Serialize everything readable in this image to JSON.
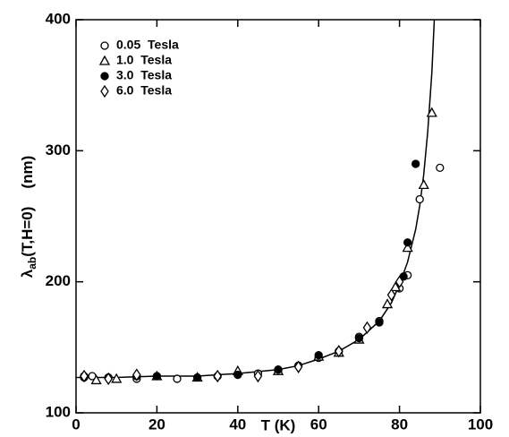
{
  "chart_data": {
    "type": "scatter",
    "xlabel": "T  (K)",
    "ylabel": [
      "λ",
      "ab",
      "(T,H=0)",
      "(nm)"
    ],
    "xlim": [
      0,
      100
    ],
    "xticks": [
      0,
      20,
      40,
      60,
      80,
      100
    ],
    "ylim": [
      100,
      400
    ],
    "yticks": [
      100,
      200,
      300,
      400
    ],
    "legend": "upper left",
    "series": [
      {
        "name": "0.05  Tesla",
        "marker": "circle",
        "filled": false,
        "color": "#000000",
        "x": [
          2,
          4,
          15,
          25,
          35,
          45,
          50,
          55,
          60,
          65,
          70,
          75,
          80,
          82,
          85,
          90
        ],
        "values": [
          127,
          128,
          126,
          126,
          128,
          130,
          132,
          136,
          142,
          147,
          158,
          170,
          195,
          205,
          263,
          287
        ]
      },
      {
        "name": "1.0  Tesla",
        "marker": "triangle",
        "filled": false,
        "color": "#000000",
        "x": [
          5,
          10,
          20,
          30,
          40,
          50,
          60,
          65,
          70,
          77,
          79,
          82,
          86,
          88
        ],
        "values": [
          125,
          126,
          128,
          127,
          132,
          132,
          143,
          146,
          156,
          183,
          196,
          226,
          274,
          329
        ]
      },
      {
        "name": "3.0  Tesla",
        "marker": "circle",
        "filled": true,
        "color": "#000000",
        "x": [
          2,
          8,
          15,
          20,
          30,
          40,
          50,
          60,
          70,
          75,
          81,
          82,
          84
        ],
        "values": [
          128,
          127,
          128,
          128,
          127,
          129,
          133,
          144,
          157,
          169,
          204,
          230,
          290
        ]
      },
      {
        "name": "6.0  Tesla",
        "marker": "diamond",
        "filled": false,
        "color": "#000000",
        "x": [
          2,
          8,
          15,
          35,
          45,
          55,
          65,
          72,
          78,
          80
        ],
        "values": [
          128,
          126,
          129,
          128,
          128,
          135,
          147,
          165,
          190,
          200
        ]
      }
    ],
    "curve": {
      "color": "#000000",
      "x": [
        0,
        10,
        20,
        30,
        40,
        50,
        55,
        60,
        65,
        70,
        75,
        78,
        80,
        82,
        84,
        85,
        86,
        87,
        88,
        88.6
      ],
      "values": [
        127,
        127,
        128,
        128,
        130,
        133,
        136,
        141,
        147,
        156,
        170,
        184,
        198,
        215,
        240,
        258,
        282,
        315,
        360,
        400
      ]
    }
  }
}
